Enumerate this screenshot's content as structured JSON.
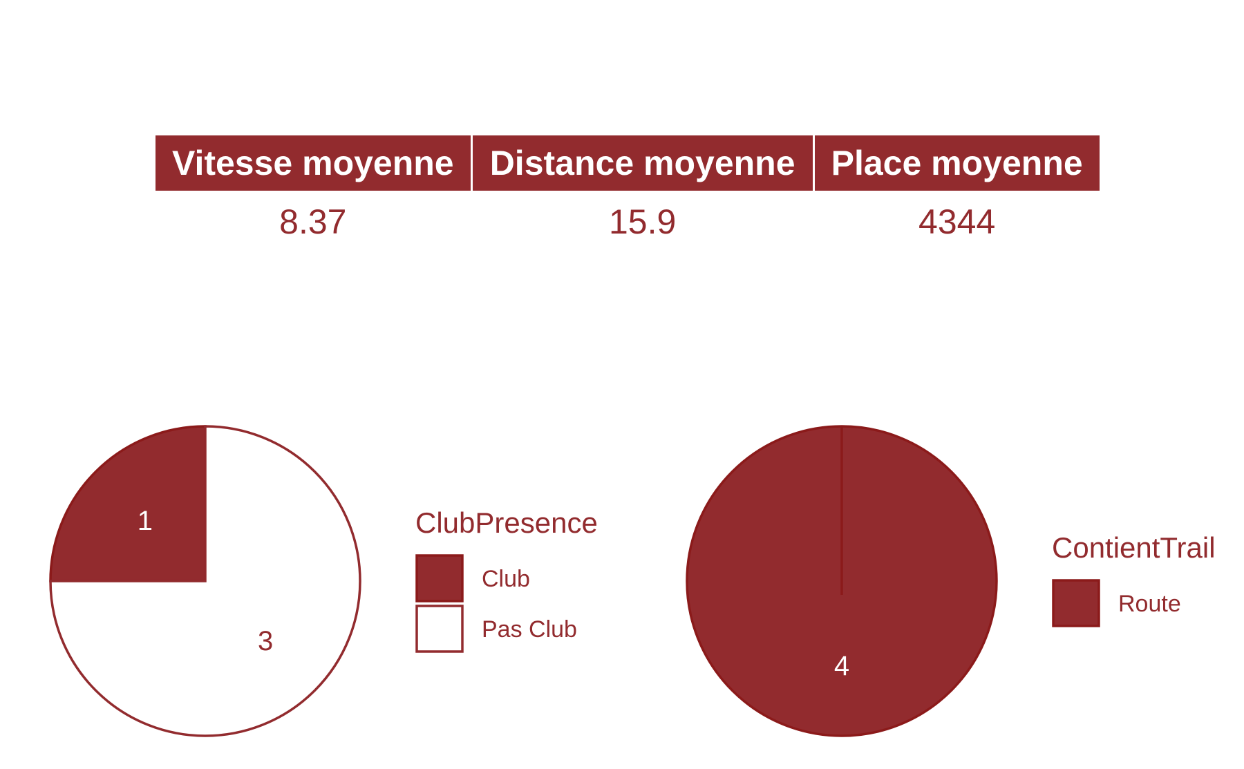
{
  "colors": {
    "accent": "#922b2e",
    "stroke": "#8b1a1a",
    "white": "#ffffff"
  },
  "table": {
    "headers": [
      "Vitesse moyenne",
      "Distance moyenne",
      "Place moyenne"
    ],
    "values": [
      "8.37",
      "15.9",
      "4344"
    ]
  },
  "chart_data": [
    {
      "type": "pie",
      "legend_title": "ClubPresence",
      "legend_placement": "right",
      "categories": [
        "Club",
        "Pas Club"
      ],
      "values": [
        1,
        3
      ],
      "labels": [
        "1",
        "3"
      ],
      "fills": [
        "#922b2e",
        "#ffffff"
      ]
    },
    {
      "type": "pie",
      "legend_title": "ContientTrail",
      "legend_placement": "right",
      "categories": [
        "Route"
      ],
      "values": [
        4
      ],
      "labels": [
        "4"
      ],
      "fills": [
        "#922b2e"
      ]
    }
  ]
}
